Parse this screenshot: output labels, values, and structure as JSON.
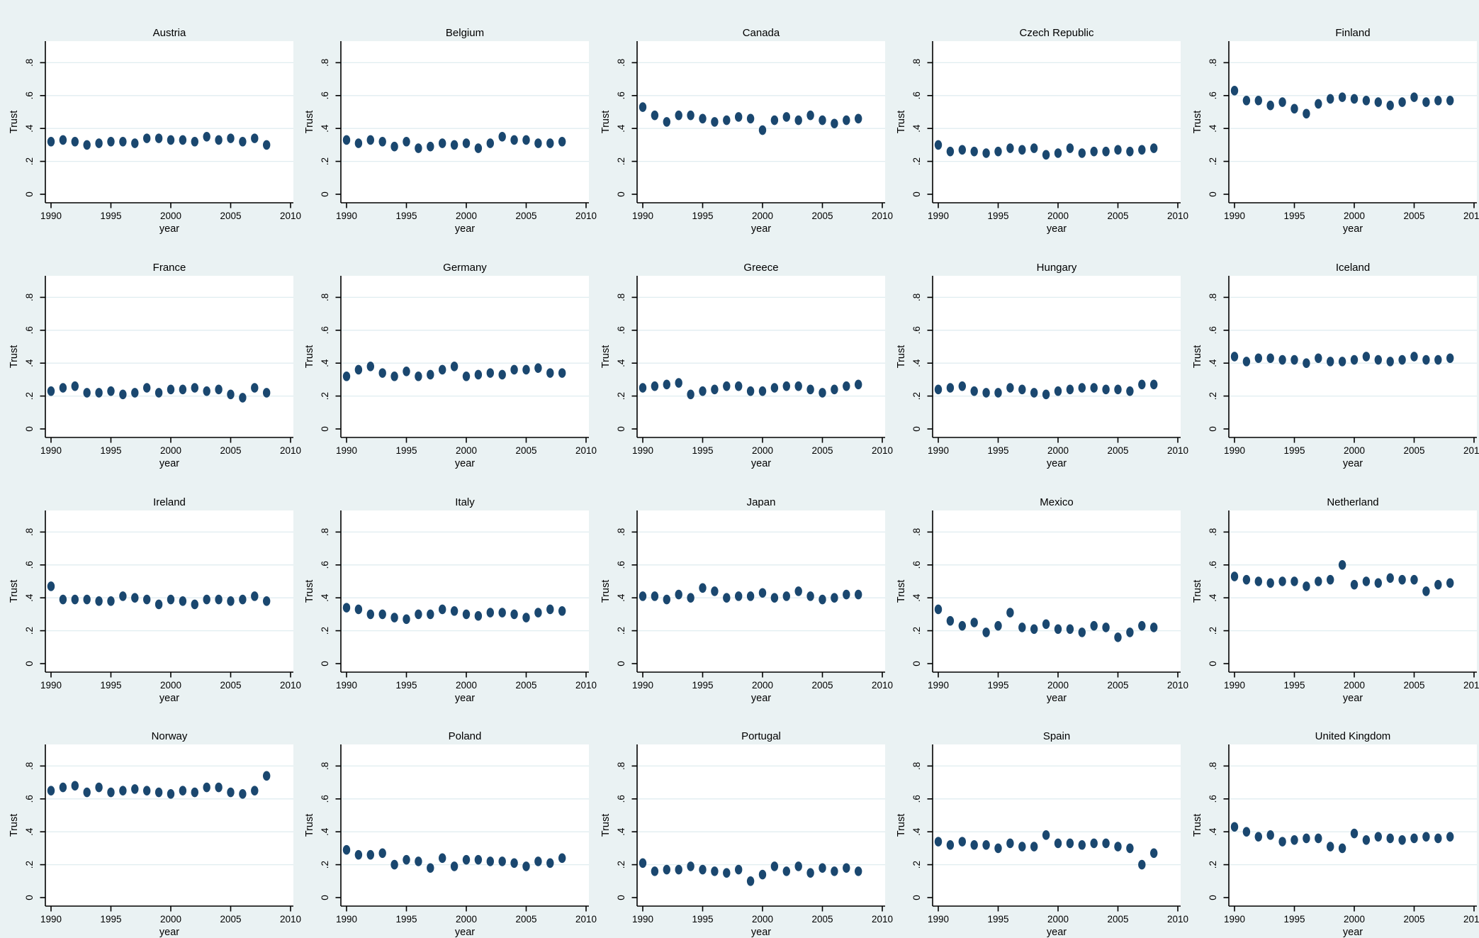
{
  "chart_data": {
    "type": "scatter",
    "grid_layout": {
      "rows": 4,
      "cols": 5
    },
    "xlabel": "year",
    "ylabel": "Trust",
    "x_ticks": [
      1990,
      1995,
      2000,
      2005,
      2010
    ],
    "x_tick_labels": [
      "1990",
      "1995",
      "2000",
      "2005",
      "2010"
    ],
    "y_ticks": [
      0,
      0.2,
      0.4,
      0.6,
      0.8
    ],
    "y_tick_labels": [
      "0",
      ".2",
      ".4",
      ".6",
      ".8"
    ],
    "xlim": [
      1989.5,
      2010.6
    ],
    "ylim": [
      0,
      0.8
    ],
    "grid_on": true,
    "colors": {
      "marker": "#1a476f",
      "page_background": "#eaf2f3",
      "plot_background": "#ffffff",
      "gridline": "#e0edf0",
      "axis": "#000000"
    },
    "x": [
      1990,
      1991,
      1992,
      1993,
      1994,
      1995,
      1996,
      1997,
      1998,
      1999,
      2000,
      2001,
      2002,
      2003,
      2004,
      2005,
      2006,
      2007,
      2008
    ],
    "series": [
      {
        "name": "Austria",
        "values": [
          0.32,
          0.33,
          0.32,
          0.3,
          0.31,
          0.32,
          0.32,
          0.31,
          0.34,
          0.34,
          0.33,
          0.33,
          0.32,
          0.35,
          0.33,
          0.34,
          0.32,
          0.34,
          0.3
        ]
      },
      {
        "name": "Belgium",
        "values": [
          0.33,
          0.31,
          0.33,
          0.32,
          0.29,
          0.32,
          0.28,
          0.29,
          0.31,
          0.3,
          0.31,
          0.28,
          0.31,
          0.35,
          0.33,
          0.33,
          0.31,
          0.31,
          0.32
        ]
      },
      {
        "name": "Canada",
        "values": [
          0.53,
          0.48,
          0.44,
          0.48,
          0.48,
          0.46,
          0.44,
          0.45,
          0.47,
          0.46,
          0.39,
          0.45,
          0.47,
          0.45,
          0.48,
          0.45,
          0.43,
          0.45,
          0.46
        ]
      },
      {
        "name": "Czech Republic",
        "values": [
          0.3,
          0.26,
          0.27,
          0.26,
          0.25,
          0.26,
          0.28,
          0.27,
          0.28,
          0.24,
          0.25,
          0.28,
          0.25,
          0.26,
          0.26,
          0.27,
          0.26,
          0.27,
          0.28
        ]
      },
      {
        "name": "Finland",
        "values": [
          0.63,
          0.57,
          0.57,
          0.54,
          0.56,
          0.52,
          0.49,
          0.55,
          0.58,
          0.59,
          0.58,
          0.57,
          0.56,
          0.54,
          0.56,
          0.59,
          0.56,
          0.57,
          0.57
        ]
      },
      {
        "name": "France",
        "values": [
          0.23,
          0.25,
          0.26,
          0.22,
          0.22,
          0.23,
          0.21,
          0.22,
          0.25,
          0.22,
          0.24,
          0.24,
          0.25,
          0.23,
          0.24,
          0.21,
          0.19,
          0.25,
          0.22
        ]
      },
      {
        "name": "Germany",
        "values": [
          0.32,
          0.36,
          0.38,
          0.34,
          0.32,
          0.35,
          0.32,
          0.33,
          0.36,
          0.38,
          0.32,
          0.33,
          0.34,
          0.33,
          0.36,
          0.36,
          0.37,
          0.34,
          0.34
        ]
      },
      {
        "name": "Greece",
        "values": [
          0.25,
          0.26,
          0.27,
          0.28,
          0.21,
          0.23,
          0.24,
          0.26,
          0.26,
          0.23,
          0.23,
          0.25,
          0.26,
          0.26,
          0.24,
          0.22,
          0.24,
          0.26,
          0.27
        ]
      },
      {
        "name": "Hungary",
        "values": [
          0.24,
          0.25,
          0.26,
          0.23,
          0.22,
          0.22,
          0.25,
          0.24,
          0.22,
          0.21,
          0.23,
          0.24,
          0.25,
          0.25,
          0.24,
          0.24,
          0.23,
          0.27,
          0.27
        ]
      },
      {
        "name": "Iceland",
        "values": [
          0.44,
          0.41,
          0.43,
          0.43,
          0.42,
          0.42,
          0.4,
          0.43,
          0.41,
          0.41,
          0.42,
          0.44,
          0.42,
          0.41,
          0.42,
          0.44,
          0.42,
          0.42,
          0.43
        ]
      },
      {
        "name": "Ireland",
        "values": [
          0.47,
          0.39,
          0.39,
          0.39,
          0.38,
          0.38,
          0.41,
          0.4,
          0.39,
          0.36,
          0.39,
          0.38,
          0.36,
          0.39,
          0.39,
          0.38,
          0.39,
          0.41,
          0.38
        ]
      },
      {
        "name": "Italy",
        "values": [
          0.34,
          0.33,
          0.3,
          0.3,
          0.28,
          0.27,
          0.3,
          0.3,
          0.33,
          0.32,
          0.3,
          0.29,
          0.31,
          0.31,
          0.3,
          0.28,
          0.31,
          0.33,
          0.32
        ]
      },
      {
        "name": "Japan",
        "values": [
          0.41,
          0.41,
          0.39,
          0.42,
          0.4,
          0.46,
          0.44,
          0.4,
          0.41,
          0.41,
          0.43,
          0.4,
          0.41,
          0.44,
          0.41,
          0.39,
          0.4,
          0.42,
          0.42
        ]
      },
      {
        "name": "Mexico",
        "values": [
          0.33,
          0.26,
          0.23,
          0.25,
          0.19,
          0.23,
          0.31,
          0.22,
          0.21,
          0.24,
          0.21,
          0.21,
          0.19,
          0.23,
          0.22,
          0.16,
          0.19,
          0.23,
          0.22
        ]
      },
      {
        "name": "Netherland",
        "values": [
          0.53,
          0.51,
          0.5,
          0.49,
          0.5,
          0.5,
          0.47,
          0.5,
          0.51,
          0.6,
          0.48,
          0.5,
          0.49,
          0.52,
          0.51,
          0.51,
          0.44,
          0.48,
          0.49
        ]
      },
      {
        "name": "Norway",
        "values": [
          0.65,
          0.67,
          0.68,
          0.64,
          0.67,
          0.64,
          0.65,
          0.66,
          0.65,
          0.64,
          0.63,
          0.65,
          0.64,
          0.67,
          0.67,
          0.64,
          0.63,
          0.65,
          0.74
        ]
      },
      {
        "name": "Poland",
        "values": [
          0.29,
          0.26,
          0.26,
          0.27,
          0.2,
          0.23,
          0.22,
          0.18,
          0.24,
          0.19,
          0.23,
          0.23,
          0.22,
          0.22,
          0.21,
          0.19,
          0.22,
          0.21,
          0.24
        ]
      },
      {
        "name": "Portugal",
        "values": [
          0.21,
          0.16,
          0.17,
          0.17,
          0.19,
          0.17,
          0.16,
          0.15,
          0.17,
          0.1,
          0.14,
          0.19,
          0.16,
          0.19,
          0.15,
          0.18,
          0.16,
          0.18,
          0.16
        ]
      },
      {
        "name": "Spain",
        "values": [
          0.34,
          0.32,
          0.34,
          0.32,
          0.32,
          0.3,
          0.33,
          0.31,
          0.31,
          0.38,
          0.33,
          0.33,
          0.32,
          0.33,
          0.33,
          0.31,
          0.3,
          0.2,
          0.27
        ]
      },
      {
        "name": "United Kingdom",
        "values": [
          0.43,
          0.4,
          0.37,
          0.38,
          0.34,
          0.35,
          0.36,
          0.36,
          0.31,
          0.3,
          0.39,
          0.35,
          0.37,
          0.36,
          0.35,
          0.36,
          0.37,
          0.36,
          0.37
        ]
      }
    ]
  }
}
